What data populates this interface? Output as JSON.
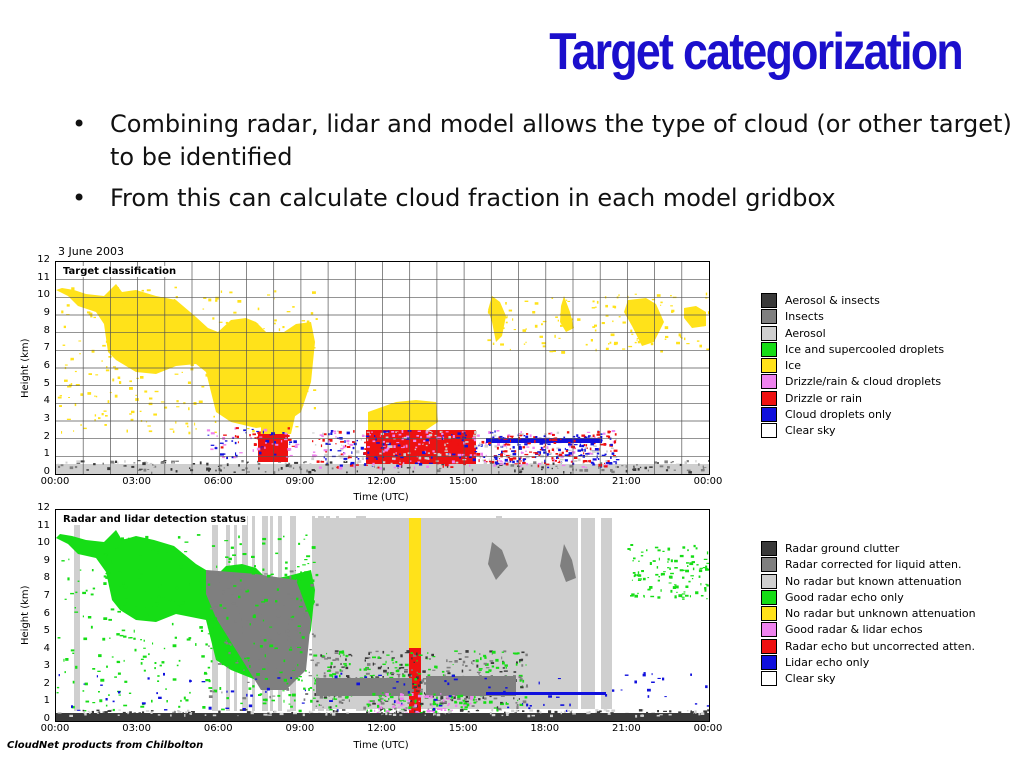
{
  "title": "Target categorization",
  "bullets": [
    "Combining radar, lidar and model allows the type of cloud (or other target) to be identified",
    "From this can calculate cloud fraction in each model gridbox"
  ],
  "bullet_glyph": "•",
  "date": "3 June 2003",
  "chart_data": [
    {
      "type": "heatmap",
      "title": "Target classification",
      "xlabel": "Time (UTC)",
      "ylabel": "Height (km)",
      "xticks": [
        "00:00",
        "03:00",
        "06:00",
        "09:00",
        "12:00",
        "15:00",
        "18:00",
        "21:00",
        "00:00"
      ],
      "yticks": [
        "0",
        "1",
        "2",
        "3",
        "4",
        "5",
        "6",
        "7",
        "8",
        "9",
        "10",
        "11",
        "12"
      ],
      "ylim": [
        0,
        12
      ],
      "xlim_hours": [
        0,
        24
      ],
      "grid": true,
      "legend": [
        {
          "label": "Aerosol & insects",
          "color": "#3a3a3a"
        },
        {
          "label": "Insects",
          "color": "#7f7f7f"
        },
        {
          "label": "Aerosol",
          "color": "#cfcfcf"
        },
        {
          "label": "Ice and supercooled droplets",
          "color": "#16dd16"
        },
        {
          "label": "Ice",
          "color": "#ffe21a"
        },
        {
          "label": "Drizzle/rain & cloud droplets",
          "color": "#ee82ee"
        },
        {
          "label": "Drizzle or rain",
          "color": "#ee1111"
        },
        {
          "label": "Cloud droplets only",
          "color": "#1010dd"
        },
        {
          "label": "Clear sky",
          "color": "#ffffff"
        }
      ]
    },
    {
      "type": "heatmap",
      "title": "Radar and lidar detection status",
      "xlabel": "Time (UTC)",
      "ylabel": "Height (km)",
      "xticks": [
        "00:00",
        "03:00",
        "06:00",
        "09:00",
        "12:00",
        "15:00",
        "18:00",
        "21:00",
        "00:00"
      ],
      "yticks": [
        "0",
        "1",
        "2",
        "3",
        "4",
        "5",
        "6",
        "7",
        "8",
        "9",
        "10",
        "11",
        "12"
      ],
      "ylim": [
        0,
        12
      ],
      "xlim_hours": [
        0,
        24
      ],
      "grid": false,
      "legend": [
        {
          "label": "Radar ground clutter",
          "color": "#3a3a3a"
        },
        {
          "label": "Radar corrected for liquid atten.",
          "color": "#7f7f7f"
        },
        {
          "label": "No radar but known attenuation",
          "color": "#cfcfcf"
        },
        {
          "label": "Good radar echo only",
          "color": "#16dd16"
        },
        {
          "label": "No radar but unknown attenuation",
          "color": "#ffe21a"
        },
        {
          "label": "Good radar & lidar echos",
          "color": "#ee82ee"
        },
        {
          "label": "Radar echo but uncorrected atten.",
          "color": "#ee1111"
        },
        {
          "label": "Lidar echo only",
          "color": "#1010dd"
        },
        {
          "label": "Clear sky",
          "color": "#ffffff"
        }
      ]
    }
  ],
  "credit": "CloudNet products from Chilbolton"
}
